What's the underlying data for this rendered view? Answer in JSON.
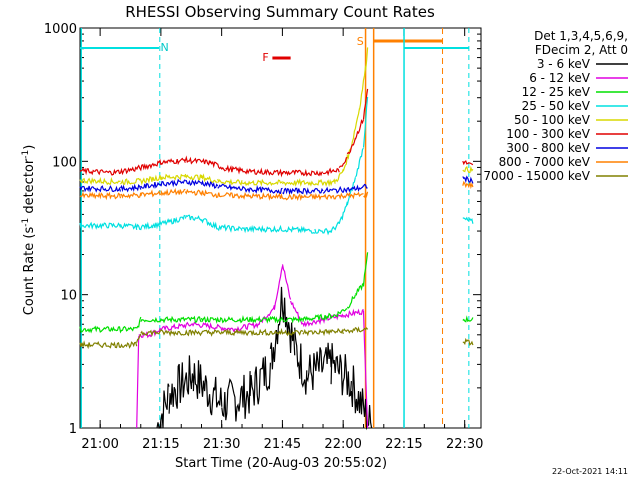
{
  "chart_data": {
    "type": "line",
    "title": "RHESSI Observing Summary Count Rates",
    "xlabel": "Start Time (20-Aug-03 20:55:02)",
    "ylabel_main": "Count Rate (s",
    "ylabel_sup1": "-1",
    "ylabel_mid": " detector",
    "ylabel_sup2": "-1",
    "ylabel_end": ")",
    "date_stamp": "22-Oct-2021 14:11",
    "yscale": "log",
    "ylim": [
      1,
      1000
    ],
    "xlim_minutes": [
      0,
      38
    ],
    "x_ticks": [
      {
        "min": 4.97,
        "label": "21:00"
      },
      {
        "min": 19.97,
        "label": "21:15"
      },
      {
        "min": 34.97,
        "label": "21:30"
      },
      {
        "min": 49.97,
        "label": "21:45"
      },
      {
        "min": 64.97,
        "label": "22:00"
      },
      {
        "min": 79.97,
        "label": "22:15"
      },
      {
        "min": 94.97,
        "label": "22:30"
      }
    ],
    "x_range_minutes": [
      0,
      99
    ],
    "y_ticks": [
      {
        "value": 1,
        "label": "1"
      },
      {
        "value": 10,
        "label": "10"
      },
      {
        "value": 100,
        "label": "100"
      },
      {
        "value": 1000,
        "label": "1000"
      }
    ],
    "legend_header": [
      "Det 1,3,4,5,6,9,",
      "FDecim 2, Att 0"
    ],
    "series": [
      {
        "name": "3 - 6 keV",
        "color": "#000000",
        "points": [
          [
            19,
            1
          ],
          [
            22,
            1.8
          ],
          [
            28,
            2.5
          ],
          [
            35,
            1.5
          ],
          [
            42,
            1.8
          ],
          [
            47,
            3
          ],
          [
            50,
            10
          ],
          [
            53,
            4
          ],
          [
            56,
            2.5
          ],
          [
            62,
            3
          ],
          [
            67,
            2.2
          ],
          [
            72,
            1
          ]
        ]
      },
      {
        "name": "6 - 12 keV",
        "color": "#e000e0",
        "points": [
          [
            14,
            1
          ],
          [
            14.5,
            5
          ],
          [
            17,
            5
          ],
          [
            20,
            5.5
          ],
          [
            28,
            6
          ],
          [
            38,
            5.5
          ],
          [
            44,
            6
          ],
          [
            48,
            8
          ],
          [
            50,
            17
          ],
          [
            52,
            9
          ],
          [
            55,
            6
          ],
          [
            60,
            6.5
          ],
          [
            65,
            7
          ],
          [
            70,
            7.5
          ],
          [
            71,
            1
          ]
        ]
      },
      {
        "name": "12 - 25 keV",
        "color": "#00e000",
        "points": [
          [
            0,
            5.5
          ],
          [
            14,
            5.5
          ],
          [
            15,
            6.5
          ],
          [
            30,
            6.5
          ],
          [
            45,
            6.5
          ],
          [
            55,
            6.5
          ],
          [
            63,
            7
          ],
          [
            66,
            8
          ],
          [
            68,
            10
          ],
          [
            70,
            12
          ],
          [
            71,
            20
          ],
          [
            94.5,
            6.5
          ],
          [
            97,
            6.5
          ]
        ]
      },
      {
        "name": "25 - 50 keV",
        "color": "#00e0e0",
        "points": [
          [
            0,
            33
          ],
          [
            10,
            33
          ],
          [
            14,
            32
          ],
          [
            18,
            33
          ],
          [
            22,
            35
          ],
          [
            26,
            38
          ],
          [
            30,
            37
          ],
          [
            34,
            32
          ],
          [
            40,
            31
          ],
          [
            50,
            31
          ],
          [
            58,
            30
          ],
          [
            62,
            30
          ],
          [
            64,
            34
          ],
          [
            66,
            48
          ],
          [
            68,
            75
          ],
          [
            70,
            130
          ],
          [
            71,
            300
          ],
          [
            94.5,
            37
          ],
          [
            97,
            35
          ]
        ]
      },
      {
        "name": "50 - 100 keV",
        "color": "#d8d800",
        "points": [
          [
            0,
            72
          ],
          [
            10,
            70
          ],
          [
            15,
            71
          ],
          [
            20,
            76
          ],
          [
            26,
            77
          ],
          [
            30,
            76
          ],
          [
            34,
            71
          ],
          [
            40,
            69
          ],
          [
            50,
            69
          ],
          [
            60,
            69
          ],
          [
            63,
            70
          ],
          [
            65,
            85
          ],
          [
            67,
            130
          ],
          [
            69,
            250
          ],
          [
            70.5,
            500
          ],
          [
            71,
            700
          ],
          [
            94.5,
            88
          ],
          [
            97,
            85
          ]
        ]
      },
      {
        "name": "100 - 300 keV",
        "color": "#e00000",
        "points": [
          [
            0,
            85
          ],
          [
            8,
            82
          ],
          [
            14,
            88
          ],
          [
            20,
            98
          ],
          [
            26,
            102
          ],
          [
            32,
            98
          ],
          [
            36,
            88
          ],
          [
            42,
            84
          ],
          [
            50,
            82
          ],
          [
            60,
            82
          ],
          [
            64,
            86
          ],
          [
            66,
            110
          ],
          [
            68,
            150
          ],
          [
            70,
            210
          ],
          [
            71,
            350
          ],
          [
            94.5,
            100
          ],
          [
            97,
            92
          ]
        ]
      },
      {
        "name": "300 - 800 keV",
        "color": "#0000e0",
        "points": [
          [
            0,
            63
          ],
          [
            10,
            62
          ],
          [
            15,
            64
          ],
          [
            20,
            68
          ],
          [
            26,
            70
          ],
          [
            30,
            69
          ],
          [
            34,
            65
          ],
          [
            40,
            62
          ],
          [
            50,
            60
          ],
          [
            60,
            60
          ],
          [
            65,
            61
          ],
          [
            68,
            62
          ],
          [
            70,
            64
          ],
          [
            71,
            65
          ],
          [
            94.5,
            75
          ],
          [
            97,
            71
          ]
        ]
      },
      {
        "name": "800 - 7000 keV",
        "color": "#ff8000",
        "points": [
          [
            0,
            55
          ],
          [
            10,
            55
          ],
          [
            15,
            56
          ],
          [
            20,
            58
          ],
          [
            26,
            59
          ],
          [
            30,
            58
          ],
          [
            34,
            56
          ],
          [
            40,
            55
          ],
          [
            50,
            54
          ],
          [
            60,
            54
          ],
          [
            65,
            55
          ],
          [
            70,
            56
          ],
          [
            71,
            57
          ],
          [
            94.5,
            68
          ],
          [
            97,
            66
          ]
        ]
      },
      {
        "name": "7000 - 15000 keV",
        "color": "#808000",
        "points": [
          [
            0,
            4.2
          ],
          [
            14,
            4.2
          ],
          [
            15,
            5.2
          ],
          [
            30,
            5.2
          ],
          [
            45,
            5.2
          ],
          [
            55,
            5.2
          ],
          [
            65,
            5.3
          ],
          [
            71,
            5.5
          ],
          [
            94.5,
            4.5
          ],
          [
            97,
            4.3
          ]
        ]
      }
    ],
    "annotations": [
      {
        "label": "N",
        "x_min": 19.7,
        "color": "#00c8c8"
      },
      {
        "label": "F",
        "x_min": 50,
        "color": "#e00000"
      },
      {
        "label": "S",
        "x_min": 71,
        "color": "#ff8000"
      }
    ]
  }
}
